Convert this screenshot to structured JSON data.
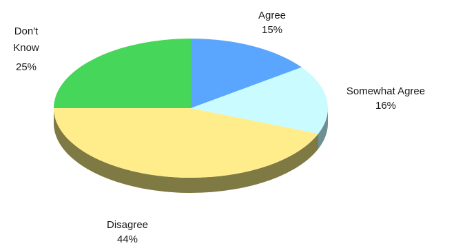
{
  "chart_data": {
    "type": "pie",
    "style": "3d",
    "categories": [
      "Agree",
      "Somewhat Agree",
      "Disagree",
      "Don't\nKnow"
    ],
    "values": [
      15,
      16,
      44,
      25
    ],
    "value_labels": [
      "15%",
      "16%",
      "44%",
      "25%"
    ],
    "colors": {
      "top": [
        "#5aa6ff",
        "#c9fbff",
        "#ffed8c",
        "#46d65a"
      ],
      "side": [
        "#3f6ea8",
        "#6d8f92",
        "#7f7a44",
        "#2f7a3a"
      ]
    },
    "start_angle_deg": 90,
    "direction": "clockwise",
    "legend": "none"
  }
}
